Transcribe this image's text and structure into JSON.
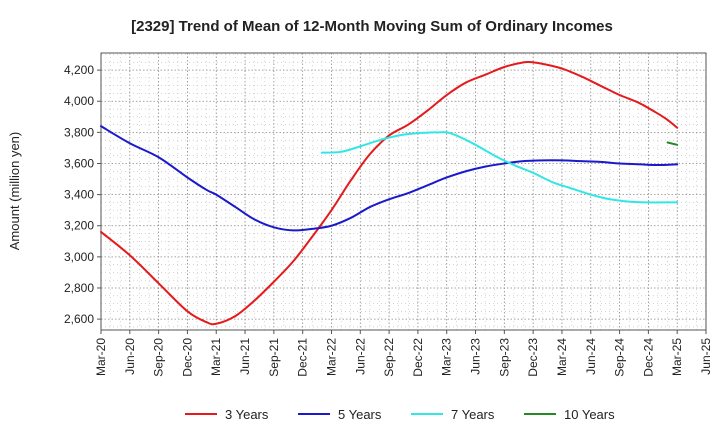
{
  "chart_data": {
    "type": "line",
    "title": "[2329]  Trend of Mean of 12-Month Moving Sum of Ordinary Incomes",
    "xlabel": "",
    "ylabel": "Amount (million yen)",
    "ylim": [
      2530,
      4310
    ],
    "y_ticks": [
      2600,
      2800,
      3000,
      3200,
      3400,
      3600,
      3800,
      4000,
      4200
    ],
    "y_tick_labels": [
      "2,600",
      "2,800",
      "3,000",
      "3,200",
      "3,400",
      "3,600",
      "3,800",
      "4,000",
      "4,200"
    ],
    "x_range_months": [
      0,
      63
    ],
    "x_tick_months": [
      0,
      3,
      6,
      9,
      12,
      15,
      18,
      21,
      24,
      27,
      30,
      33,
      36,
      39,
      42,
      45,
      48,
      51,
      54,
      57,
      60,
      63
    ],
    "x_tick_labels": [
      "Mar-20",
      "Jun-20",
      "Sep-20",
      "Dec-20",
      "Mar-21",
      "Jun-21",
      "Sep-21",
      "Dec-21",
      "Mar-22",
      "Jun-22",
      "Sep-22",
      "Dec-22",
      "Mar-23",
      "Jun-23",
      "Sep-23",
      "Dec-23",
      "Mar-24",
      "Jun-24",
      "Sep-24",
      "Dec-24",
      "Mar-25",
      "Jun-25"
    ],
    "grid": true,
    "legend_position": "bottom",
    "series": [
      {
        "name": "3 Years",
        "color": "#e41a1c",
        "x": [
          0,
          3,
          6,
          9,
          11,
          12,
          14,
          16,
          18,
          20,
          22,
          24,
          26,
          28,
          30,
          32,
          34,
          36,
          38,
          40,
          42,
          44,
          45,
          46,
          48,
          50,
          52,
          54,
          56,
          58,
          59,
          60
        ],
        "values": [
          3160,
          3010,
          2830,
          2650,
          2580,
          2570,
          2620,
          2720,
          2840,
          2970,
          3130,
          3300,
          3490,
          3660,
          3780,
          3850,
          3940,
          4040,
          4120,
          4170,
          4220,
          4250,
          4250,
          4240,
          4210,
          4160,
          4100,
          4040,
          3990,
          3920,
          3880,
          3830
        ]
      },
      {
        "name": "5 Years",
        "color": "#1a1acc",
        "x": [
          0,
          3,
          6,
          9,
          11,
          12,
          14,
          16,
          18,
          20,
          22,
          24,
          26,
          28,
          30,
          32,
          34,
          36,
          38,
          40,
          42,
          44,
          46,
          48,
          50,
          52,
          54,
          56,
          58,
          60
        ],
        "values": [
          3840,
          3730,
          3640,
          3510,
          3430,
          3400,
          3320,
          3240,
          3190,
          3170,
          3180,
          3200,
          3250,
          3320,
          3370,
          3410,
          3460,
          3510,
          3550,
          3580,
          3600,
          3615,
          3620,
          3620,
          3615,
          3610,
          3600,
          3595,
          3590,
          3595
        ]
      },
      {
        "name": "7 Years",
        "color": "#33e6e6",
        "x": [
          23,
          25,
          27,
          29,
          31,
          33,
          35,
          36,
          37,
          39,
          41,
          43,
          45,
          47,
          49,
          51,
          53,
          55,
          57,
          59,
          60
        ],
        "values": [
          3670,
          3675,
          3710,
          3750,
          3780,
          3795,
          3800,
          3800,
          3780,
          3720,
          3650,
          3590,
          3540,
          3480,
          3440,
          3400,
          3370,
          3355,
          3350,
          3350,
          3350
        ]
      },
      {
        "name": "10 Years",
        "color": "#228b22",
        "x": [
          59,
          60
        ],
        "values": [
          3735,
          3720
        ]
      }
    ]
  }
}
